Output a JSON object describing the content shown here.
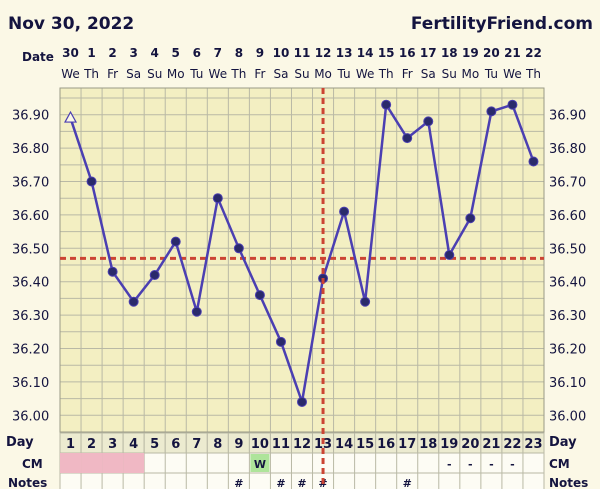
{
  "header": {
    "date": "Nov 30, 2022",
    "site": "FertilityFriend.com",
    "date_row_label": "Date",
    "day_row_label": "Day",
    "cm_label": "CM",
    "notes_label": "Notes"
  },
  "colors": {
    "background": "#fbf8e6",
    "plot_bg": "#f3efc2",
    "grid": "#b9b9a5",
    "line": "#4b3fb2",
    "marker_fill": "#2a2a6b",
    "dashed": "#cc4433",
    "period": "#f0b8c4",
    "cm_w": "#aee49a"
  },
  "chart_data": {
    "type": "line",
    "dates": [
      "30",
      "1",
      "2",
      "3",
      "4",
      "5",
      "6",
      "7",
      "8",
      "9",
      "10",
      "11",
      "12",
      "13",
      "14",
      "15",
      "16",
      "17",
      "18",
      "19",
      "20",
      "21",
      "22"
    ],
    "weekdays": [
      "We",
      "Th",
      "Fr",
      "Sa",
      "Su",
      "Mo",
      "Tu",
      "We",
      "Th",
      "Fr",
      "Sa",
      "Su",
      "Mo",
      "Tu",
      "We",
      "Th",
      "Fr",
      "Sa",
      "Su",
      "Mo",
      "Tu",
      "We",
      "Th"
    ],
    "cycle_days": [
      "1",
      "2",
      "3",
      "4",
      "5",
      "6",
      "7",
      "8",
      "9",
      "10",
      "11",
      "12",
      "13",
      "14",
      "15",
      "16",
      "17",
      "18",
      "19",
      "20",
      "21",
      "22",
      "23"
    ],
    "temps": [
      36.89,
      36.7,
      36.43,
      36.34,
      36.42,
      36.52,
      36.31,
      36.65,
      36.5,
      36.36,
      36.22,
      36.04,
      36.41,
      36.61,
      36.34,
      36.93,
      36.83,
      36.88,
      36.48,
      36.59,
      36.91,
      36.93,
      36.76
    ],
    "open_marker_days": [
      1
    ],
    "y_ticks": [
      "36.90",
      "36.80",
      "36.70",
      "36.60",
      "36.50",
      "36.40",
      "36.30",
      "36.20",
      "36.10",
      "36.00"
    ],
    "ylim": [
      35.95,
      36.98
    ],
    "coverline": 36.47,
    "ovulation_day": 13,
    "grid": true,
    "period_days": [
      1,
      2,
      3,
      4
    ],
    "cm": [
      "",
      "",
      "",
      "",
      "",
      "",
      "",
      "",
      "",
      "W",
      "",
      "",
      "",
      "",
      "",
      "",
      "",
      "",
      "-",
      "-",
      "-",
      "-",
      ""
    ],
    "notes": [
      "",
      "",
      "",
      "",
      "",
      "",
      "",
      "",
      "#",
      "",
      "#",
      "#",
      "#",
      "",
      "",
      "",
      "#",
      "",
      "",
      "",
      "",
      "",
      ""
    ]
  }
}
